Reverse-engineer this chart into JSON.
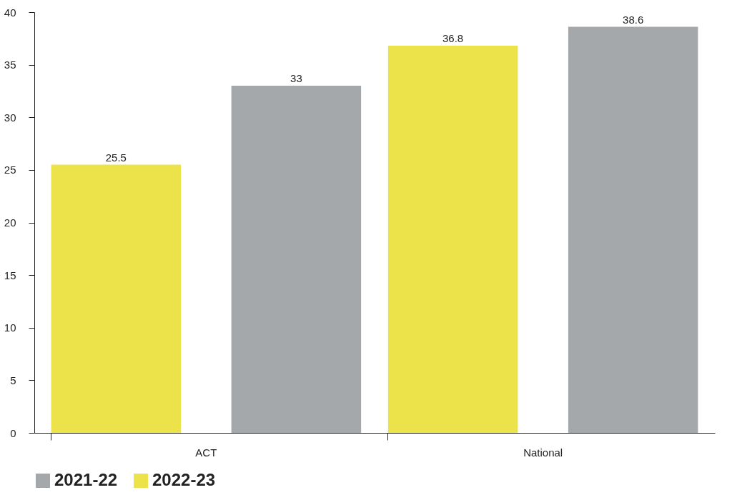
{
  "chart_data": {
    "type": "bar",
    "categories": [
      "ACT",
      "National"
    ],
    "series": [
      {
        "name": "2022-23",
        "color": "#ece24a",
        "values": [
          25.5,
          36.8
        ]
      },
      {
        "name": "2021-22",
        "color": "#a5a8aa",
        "values": [
          33,
          38.6
        ]
      }
    ],
    "ylim": [
      0,
      40
    ],
    "yticks": [
      0,
      5,
      10,
      15,
      20,
      25,
      30,
      35,
      40
    ],
    "grid": false,
    "legend": "bottom",
    "data_labels": true
  }
}
